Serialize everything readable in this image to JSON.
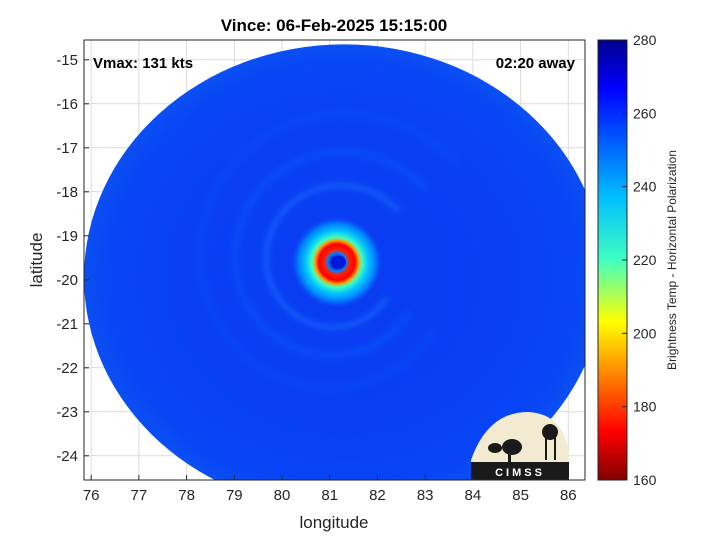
{
  "chart_data": {
    "type": "heatmap",
    "title": "Vince: 06-Feb-2025 15:15:00",
    "xlabel": "longitude",
    "ylabel": "latitude",
    "xlim": [
      75.85,
      86.35
    ],
    "ylim": [
      -24.55,
      -14.55
    ],
    "x_ticks": [
      76,
      77,
      78,
      79,
      80,
      81,
      82,
      83,
      84,
      85,
      86
    ],
    "y_ticks": [
      -15,
      -16,
      -17,
      -18,
      -19,
      -20,
      -21,
      -22,
      -23,
      -24
    ],
    "grid": true,
    "colorbar": {
      "label": "Brightness Temp - Horizontal Polarization",
      "range": [
        160,
        280
      ],
      "ticks": [
        280,
        260,
        240,
        220,
        200,
        180,
        160
      ],
      "colormap": "jet"
    },
    "annotations": {
      "vmax": "Vmax: 131 kts",
      "time_away": "02:20 away"
    },
    "storm_center": {
      "lon": 81.15,
      "lat": -19.6
    },
    "swath": {
      "center_lon": 81.3,
      "center_lat": -19.95,
      "radius_lon": 5.45,
      "radius_lat": 5.3
    },
    "eyewall_min_tb": 175,
    "eye_tb": 262,
    "background_tb": 264,
    "logo": "CIMSS"
  }
}
